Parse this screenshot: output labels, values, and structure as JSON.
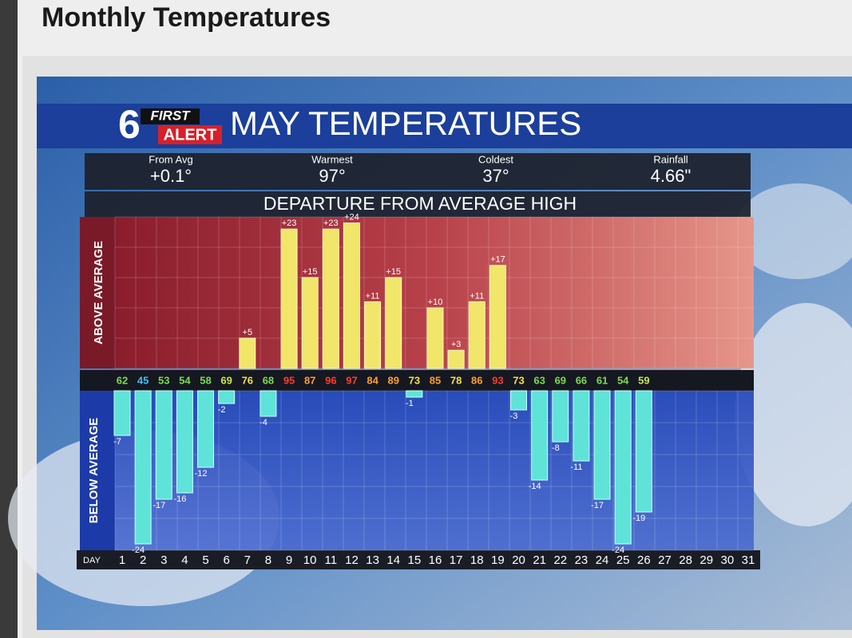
{
  "page_title": "Monthly Temperatures",
  "logo": {
    "number": "6",
    "line1": "FIRST",
    "line2": "ALERT"
  },
  "stats": [
    {
      "label": "From Avg",
      "value": "+0.1°"
    },
    {
      "label": "Warmest",
      "value": "97°"
    },
    {
      "label": "Coldest",
      "value": "37°"
    },
    {
      "label": "Rainfall",
      "value": "4.66\""
    }
  ],
  "chart_data": {
    "type": "bar",
    "title": "MAY TEMPERATURES",
    "subtitle": "DEPARTURE FROM AVERAGE HIGH",
    "above_label": "ABOVE AVERAGE",
    "below_label": "BELOW AVERAGE",
    "x_label": "DAY",
    "categories": [
      "1",
      "2",
      "3",
      "4",
      "5",
      "6",
      "7",
      "8",
      "9",
      "10",
      "11",
      "12",
      "13",
      "14",
      "15",
      "16",
      "17",
      "18",
      "19",
      "20",
      "21",
      "22",
      "23",
      "24",
      "25",
      "26",
      "27",
      "28",
      "29",
      "30",
      "31"
    ],
    "values": [
      -7,
      -24,
      -17,
      -16,
      -12,
      -2,
      5,
      -4,
      23,
      15,
      23,
      24,
      11,
      15,
      -1,
      10,
      3,
      11,
      17,
      -3,
      -14,
      -8,
      -11,
      -17,
      -24,
      -19,
      null,
      null,
      null,
      null,
      null
    ],
    "value_labels": [
      "-7",
      "-24",
      "-17",
      "-16",
      "-12",
      "-2",
      "+5",
      "-4",
      "+23",
      "+15",
      "+23",
      "+24",
      "+11",
      "+15",
      "-1",
      "+10",
      "+3",
      "+11",
      "+17",
      "-3",
      "-14",
      "-8",
      "-11",
      "-17",
      "-24",
      "-19",
      null,
      null,
      null,
      null,
      null
    ],
    "above_color": "#f1e66a",
    "below_color": "#5fe3d8",
    "ylim": [
      -25,
      25
    ],
    "high_temps": [
      62,
      45,
      53,
      54,
      58,
      69,
      76,
      68,
      95,
      87,
      96,
      97,
      84,
      89,
      73,
      85,
      78,
      86,
      93,
      73,
      63,
      69,
      66,
      61,
      54,
      59,
      null,
      null,
      null,
      null,
      null
    ],
    "high_temp_colors": [
      "#7ddb4f",
      "#3fc3f2",
      "#7ddb4f",
      "#7ddb4f",
      "#7ddb4f",
      "#c9e54a",
      "#f3e24a",
      "#7ddb4f",
      "#ff3b2f",
      "#ffa02a",
      "#ff3b2f",
      "#ff3b2f",
      "#ffa02a",
      "#ffa02a",
      "#f3e24a",
      "#ffa02a",
      "#f3e24a",
      "#ffa02a",
      "#ff3b2f",
      "#f3e24a",
      "#7ddb4f",
      "#7ddb4f",
      "#7ddb4f",
      "#7ddb4f",
      "#7ddb4f",
      "#c9e54a",
      null,
      null,
      null,
      null,
      null
    ]
  }
}
